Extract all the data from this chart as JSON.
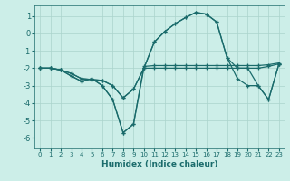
{
  "xlabel": "Humidex (Indice chaleur)",
  "background_color": "#cceee8",
  "grid_color": "#aad4cc",
  "line_color": "#1a6b6b",
  "xlim": [
    -0.5,
    23.5
  ],
  "ylim": [
    -6.6,
    1.6
  ],
  "yticks": [
    1,
    0,
    -1,
    -2,
    -3,
    -4,
    -5,
    -6
  ],
  "xticks": [
    0,
    1,
    2,
    3,
    4,
    5,
    6,
    7,
    8,
    9,
    10,
    11,
    12,
    13,
    14,
    15,
    16,
    17,
    18,
    19,
    20,
    21,
    22,
    23
  ],
  "series": [
    {
      "x": [
        0,
        1,
        2,
        3,
        4,
        5,
        6,
        7,
        8,
        9,
        10,
        11,
        12,
        13,
        14,
        15,
        16,
        17,
        18,
        19,
        20,
        21,
        22,
        23
      ],
      "y": [
        -2.0,
        -2.0,
        -2.1,
        -2.45,
        -2.75,
        -2.6,
        -3.0,
        -3.8,
        -5.7,
        -5.2,
        -2.0,
        -2.0,
        -2.0,
        -2.0,
        -2.0,
        -2.0,
        -2.0,
        -2.0,
        -2.0,
        -2.0,
        -2.0,
        -2.0,
        -1.9,
        -1.75
      ]
    },
    {
      "x": [
        0,
        1,
        2,
        3,
        4,
        5,
        6,
        7,
        8,
        9,
        10,
        11,
        12,
        13,
        14,
        15,
        16,
        17,
        18,
        19,
        20,
        21,
        22,
        23
      ],
      "y": [
        -2.0,
        -2.0,
        -2.1,
        -2.45,
        -2.75,
        -2.6,
        -3.0,
        -3.8,
        -5.7,
        -5.2,
        -1.9,
        -1.85,
        -1.85,
        -1.85,
        -1.85,
        -1.85,
        -1.85,
        -1.85,
        -1.85,
        -1.85,
        -1.85,
        -1.85,
        -1.8,
        -1.7
      ]
    },
    {
      "x": [
        0,
        1,
        2,
        3,
        4,
        5,
        6,
        7,
        8,
        9,
        10,
        11,
        12,
        13,
        14,
        15,
        16,
        17,
        18,
        19,
        20,
        21,
        22,
        23
      ],
      "y": [
        -2.0,
        -2.0,
        -2.1,
        -2.3,
        -2.6,
        -2.65,
        -2.7,
        -3.0,
        -3.7,
        -3.2,
        -2.0,
        -0.5,
        0.1,
        0.55,
        0.9,
        1.2,
        1.1,
        0.65,
        -1.4,
        -2.6,
        -3.0,
        -3.0,
        -3.8,
        -1.75
      ]
    },
    {
      "x": [
        0,
        1,
        2,
        3,
        4,
        5,
        6,
        7,
        8,
        9,
        10,
        11,
        12,
        13,
        14,
        15,
        16,
        17,
        18,
        19,
        20,
        21,
        22,
        23
      ],
      "y": [
        -2.0,
        -2.0,
        -2.1,
        -2.3,
        -2.6,
        -2.65,
        -2.7,
        -3.0,
        -3.7,
        -3.2,
        -2.0,
        -0.5,
        0.1,
        0.55,
        0.9,
        1.2,
        1.1,
        0.65,
        -1.4,
        -2.0,
        -2.0,
        -3.0,
        -3.8,
        -1.75
      ]
    }
  ],
  "marker": "+",
  "markersize": 3.5,
  "linewidth": 0.9
}
